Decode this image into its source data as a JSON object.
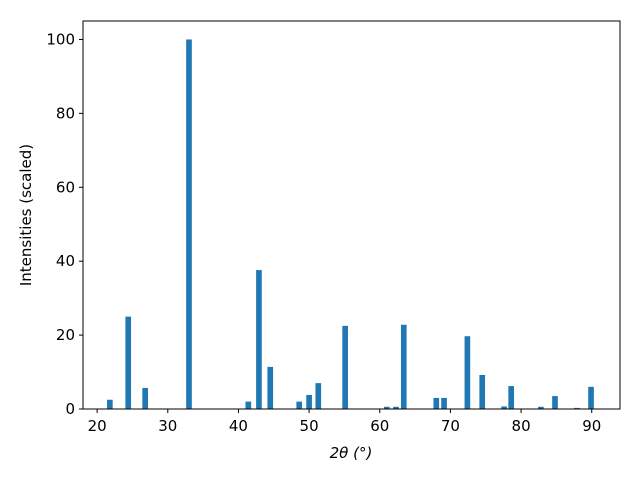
{
  "chart_data": {
    "type": "bar",
    "x_label": "2θ (°)",
    "y_label": "Intensities (scaled)",
    "x": [
      21.8,
      24.4,
      26.8,
      33.0,
      41.4,
      42.9,
      44.5,
      48.6,
      50.0,
      51.3,
      55.1,
      61.0,
      62.3,
      63.4,
      68.0,
      69.1,
      72.4,
      74.5,
      77.6,
      78.6,
      82.8,
      84.8,
      87.9,
      89.9
    ],
    "values": [
      2.5,
      25,
      5.7,
      100,
      2,
      37.6,
      11.4,
      2,
      3.8,
      7,
      22.5,
      0.6,
      0.6,
      22.8,
      3,
      3,
      19.7,
      9.2,
      0.7,
      6.2,
      0.6,
      3.5,
      0.3,
      6
    ],
    "color": "#1f77b4",
    "bar_width": 0.8,
    "xlim": [
      18,
      94
    ],
    "ylim": [
      0,
      105
    ],
    "xticks": [
      20,
      30,
      40,
      50,
      60,
      70,
      80,
      90
    ],
    "yticks": [
      0,
      20,
      40,
      60,
      80,
      100
    ],
    "grid": false
  }
}
